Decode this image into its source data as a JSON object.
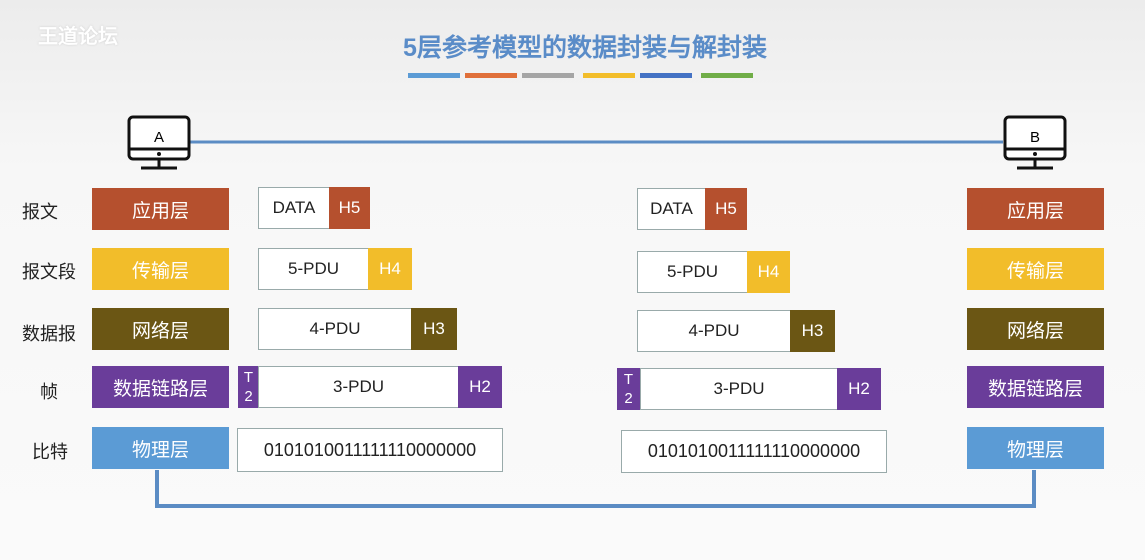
{
  "logo": "王道论坛",
  "title": "5层参考模型的数据封装与解封装",
  "title_bar_colors": [
    "#5b9bd5",
    "#e0703a",
    "#a5a5a5",
    "#f2bd2a",
    "#4472c4",
    "#70ad47"
  ],
  "hosts": {
    "a": "A",
    "b": "B"
  },
  "pdu_labels": [
    "报文",
    "报文段",
    "数据报",
    "帧",
    "比特"
  ],
  "layers": [
    {
      "name": "应用层",
      "color": "#b5502e"
    },
    {
      "name": "传输层",
      "color": "#f2bd2a"
    },
    {
      "name": "网络层",
      "color": "#6b5614"
    },
    {
      "name": "数据链路层",
      "color": "#6a3d9a"
    },
    {
      "name": "物理层",
      "color": "#5b9bd5"
    }
  ],
  "encapsulation": {
    "data": "DATA",
    "h5": "H5",
    "pdu5": "5-PDU",
    "h4": "H4",
    "pdu4": "4-PDU",
    "h3": "H3",
    "t2_top": "T",
    "t2_bottom": "2",
    "pdu3": "3-PDU",
    "h2": "H2",
    "bits": "0101010011111110000000"
  }
}
